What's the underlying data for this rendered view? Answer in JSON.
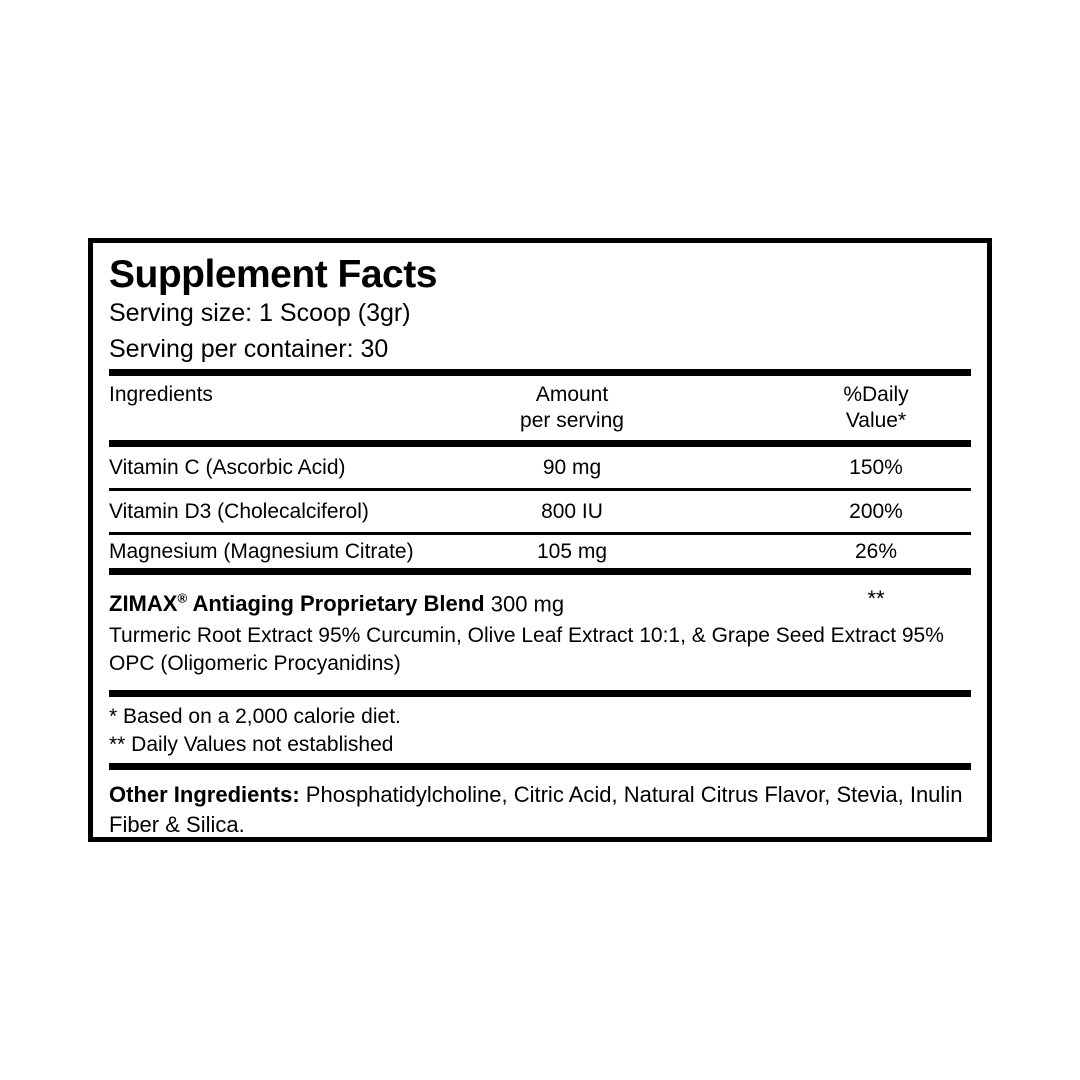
{
  "label": {
    "title": "Supplement Facts",
    "serving_size": "Serving size: 1 Scoop (3gr)",
    "servings_per_container": "Serving per container: 30",
    "columns": {
      "ingredients": "Ingredients",
      "amount_line1": "Amount",
      "amount_line2": "per serving",
      "dv_line1": "%Daily",
      "dv_line2": "Value*"
    },
    "rows": [
      {
        "name": "Vitamin C (Ascorbic Acid)",
        "amount": "90 mg",
        "dv": "150%"
      },
      {
        "name": "Vitamin D3 (Cholecalciferol)",
        "amount": "800 IU",
        "dv": "200%"
      },
      {
        "name": "Magnesium (Magnesium Citrate)",
        "amount": "105 mg",
        "dv": "26%"
      }
    ],
    "blend": {
      "name": "ZIMAX",
      "reg_mark": "®",
      "name_rest": " Antiaging Proprietary Blend",
      "amount": " 300 mg",
      "dv": "**",
      "description": "Turmeric Root Extract 95% Curcumin, Olive Leaf Extract 10:1, & Grape Seed Extract 95% OPC (Oligomeric Procyanidins)"
    },
    "footnotes": [
      "* Based on a 2,000 calorie diet.",
      "** Daily Values not established"
    ],
    "other_ingredients_label": "Other Ingredients:",
    "other_ingredients_text": " Phosphatidylcholine, Citric Acid, Natural Citrus Flavor, Stevia, Inulin Fiber & Silica."
  },
  "colors": {
    "text": "#000000",
    "background": "#ffffff",
    "rule": "#000000"
  }
}
